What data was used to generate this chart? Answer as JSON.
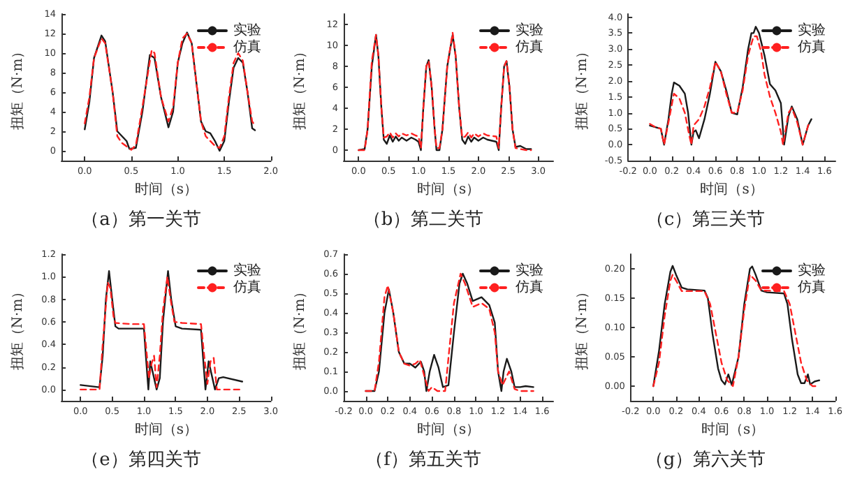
{
  "chart_data": [
    {
      "type": "line",
      "title": "（a）第一关节",
      "xlabel": "时间（s）",
      "ylabel": "扭矩（N·m）",
      "legend": "top right",
      "grid": false,
      "marker": "none",
      "xlim": [
        -0.25,
        2.0
      ],
      "ylim": [
        -1,
        14
      ],
      "xticks": [
        {
          "value": 0,
          "label": "0.0"
        },
        {
          "value": 0.5,
          "label": "0.5"
        },
        {
          "value": 1,
          "label": "1.0"
        },
        {
          "value": 1.5,
          "label": "1.5"
        },
        {
          "value": 2,
          "label": "2.0"
        }
      ],
      "yticks": [
        0,
        2,
        4,
        6,
        8,
        10,
        12,
        14
      ],
      "series": [
        {
          "name": "实验",
          "color": "#1a1a1a",
          "line_style": "solid",
          "x": [
            0,
            0.05,
            0.1,
            0.18,
            0.22,
            0.3,
            0.35,
            0.4,
            0.45,
            0.48,
            0.55,
            0.62,
            0.7,
            0.75,
            0.82,
            0.9,
            0.95,
            1.0,
            1.05,
            1.1,
            1.15,
            1.2,
            1.25,
            1.3,
            1.35,
            1.4,
            1.45,
            1.5,
            1.55,
            1.6,
            1.65,
            1.7,
            1.75,
            1.8,
            1.83
          ],
          "values": [
            2.2,
            5,
            9.5,
            11.8,
            11.2,
            6,
            2,
            1.5,
            1,
            0.2,
            0.3,
            4,
            9.8,
            9.5,
            5.5,
            2.4,
            4,
            9,
            11,
            12.1,
            11,
            7,
            3,
            2,
            1.8,
            1,
            0,
            1,
            5,
            8.5,
            9.5,
            9,
            6,
            2.3,
            2.1
          ]
        },
        {
          "name": "仿真",
          "color": "#ff2020",
          "line_style": "dashed",
          "x": [
            0,
            0.05,
            0.1,
            0.18,
            0.22,
            0.3,
            0.35,
            0.4,
            0.5,
            0.55,
            0.62,
            0.72,
            0.75,
            0.82,
            0.9,
            0.95,
            1.0,
            1.05,
            1.1,
            1.15,
            1.2,
            1.25,
            1.3,
            1.4,
            1.45,
            1.5,
            1.55,
            1.6,
            1.65,
            1.7,
            1.75,
            1.8,
            1.83
          ],
          "values": [
            2.8,
            5.5,
            9.5,
            11.5,
            11,
            6,
            1.5,
            0.8,
            0.1,
            0.6,
            4.5,
            10.3,
            10,
            5.5,
            3,
            4.5,
            9,
            11.5,
            12,
            11,
            7,
            3,
            1.5,
            0.5,
            0.3,
            1.5,
            5.5,
            9,
            10,
            9.2,
            6,
            3,
            2.6
          ]
        }
      ]
    },
    {
      "type": "line",
      "title": "（b）第二关节",
      "xlabel": "时间（s）",
      "ylabel": "扭矩（N·m）",
      "legend": "top right",
      "grid": false,
      "marker": "none",
      "xlim": [
        -0.25,
        3.25
      ],
      "ylim": [
        -1,
        13
      ],
      "xticks": [
        {
          "value": 0,
          "label": "0.0"
        },
        {
          "value": 0.5,
          "label": "0.5"
        },
        {
          "value": 1,
          "label": "1.0"
        },
        {
          "value": 1.5,
          "label": "1.5"
        },
        {
          "value": 2,
          "label": "2.0"
        },
        {
          "value": 2.5,
          "label": "2.5"
        },
        {
          "value": 3,
          "label": "3.0"
        }
      ],
      "yticks": [
        0,
        2,
        4,
        6,
        8,
        10,
        12
      ],
      "series": [
        {
          "name": "实验",
          "color": "#1a1a1a",
          "line_style": "solid",
          "x": [
            0,
            0.1,
            0.15,
            0.22,
            0.29,
            0.33,
            0.38,
            0.42,
            0.47,
            0.52,
            0.57,
            0.62,
            0.67,
            0.72,
            0.8,
            0.88,
            0.95,
            1.0,
            1.04,
            1.08,
            1.13,
            1.17,
            1.22,
            1.27,
            1.3,
            1.35,
            1.4,
            1.48,
            1.57,
            1.62,
            1.68,
            1.73,
            1.78,
            1.83,
            1.88,
            1.93,
            2.0,
            2.08,
            2.15,
            2.3,
            2.34,
            2.38,
            2.43,
            2.47,
            2.52,
            2.57,
            2.62,
            2.7,
            2.8,
            2.88
          ],
          "values": [
            0,
            0.1,
            2,
            8,
            11,
            9,
            4,
            1,
            0.6,
            1.4,
            0.8,
            1.3,
            0.9,
            1.2,
            0.9,
            1.2,
            1.0,
            0.8,
            0,
            4,
            8,
            8.6,
            6,
            2,
            0,
            0,
            2,
            8,
            11,
            9,
            4,
            1,
            0.6,
            1.3,
            0.8,
            1.2,
            0.9,
            1.2,
            1.0,
            0.8,
            0,
            4,
            8,
            8.5,
            6,
            2,
            0.3,
            0.4,
            0.1,
            0.1
          ]
        },
        {
          "name": "仿真",
          "color": "#ff2020",
          "line_style": "dashed",
          "x": [
            0,
            0.1,
            0.15,
            0.22,
            0.29,
            0.33,
            0.38,
            0.42,
            0.47,
            0.52,
            0.57,
            0.62,
            0.67,
            0.72,
            0.8,
            0.88,
            0.95,
            1.0,
            1.04,
            1.08,
            1.13,
            1.17,
            1.22,
            1.27,
            1.3,
            1.35,
            1.4,
            1.48,
            1.57,
            1.62,
            1.68,
            1.73,
            1.78,
            1.83,
            1.88,
            1.93,
            2.0,
            2.08,
            2.15,
            2.3,
            2.34,
            2.38,
            2.43,
            2.47,
            2.52,
            2.57,
            2.62,
            2.7,
            2.8,
            2.88
          ],
          "values": [
            0,
            0,
            2,
            8.5,
            11,
            9,
            4,
            1.2,
            1.3,
            1.7,
            1.2,
            1.6,
            1.3,
            1.6,
            1.4,
            1.6,
            1.4,
            1.3,
            0.2,
            4,
            8,
            8.5,
            6,
            2,
            0.2,
            0.2,
            2,
            8,
            11.2,
            9,
            4,
            1.2,
            1.3,
            1.7,
            1.2,
            1.6,
            1.3,
            1.6,
            1.4,
            1.3,
            0.2,
            4,
            8,
            8.5,
            6,
            2,
            0.2,
            0.1,
            0,
            0
          ]
        }
      ]
    },
    {
      "type": "line",
      "title": "（c）第三关节",
      "xlabel": "时间（s）",
      "ylabel": "扭矩（N·m）",
      "legend": "top right",
      "grid": false,
      "marker": "none",
      "xlim": [
        -0.2,
        1.7
      ],
      "ylim": [
        -0.5,
        4.1
      ],
      "xticks": [
        {
          "value": -0.2,
          "label": "-0.2"
        },
        {
          "value": 0,
          "label": "0.0"
        },
        {
          "value": 0.2,
          "label": "0.2"
        },
        {
          "value": 0.4,
          "label": "0.4"
        },
        {
          "value": 0.6,
          "label": "0.6"
        },
        {
          "value": 0.8,
          "label": "0.8"
        },
        {
          "value": 1,
          "label": "1.0"
        },
        {
          "value": 1.2,
          "label": "1.2"
        },
        {
          "value": 1.4,
          "label": "1.4"
        },
        {
          "value": 1.6,
          "label": "1.6"
        }
      ],
      "yticks": [
        {
          "value": -0.5,
          "label": "-0.5"
        },
        {
          "value": 0,
          "label": "0.0"
        },
        {
          "value": 0.5,
          "label": "0.5"
        },
        {
          "value": 1,
          "label": "1.0"
        },
        {
          "value": 1.5,
          "label": "1.5"
        },
        {
          "value": 2,
          "label": "2.0"
        },
        {
          "value": 2.5,
          "label": "2.5"
        },
        {
          "value": 3,
          "label": "3.0"
        },
        {
          "value": 3.5,
          "label": "3.5"
        },
        {
          "value": 4,
          "label": "4.0"
        }
      ],
      "series": [
        {
          "name": "实验",
          "color": "#1a1a1a",
          "line_style": "solid",
          "x": [
            0,
            0.05,
            0.1,
            0.13,
            0.17,
            0.2,
            0.22,
            0.27,
            0.32,
            0.35,
            0.38,
            0.4,
            0.42,
            0.45,
            0.5,
            0.55,
            0.6,
            0.65,
            0.7,
            0.75,
            0.8,
            0.85,
            0.9,
            0.93,
            0.95,
            0.97,
            1.0,
            1.05,
            1.1,
            1.15,
            1.2,
            1.23,
            1.27,
            1.3,
            1.35,
            1.4,
            1.45,
            1.48
          ],
          "values": [
            0.6,
            0.55,
            0.5,
            0,
            0.8,
            1.6,
            1.95,
            1.85,
            1.6,
            1,
            0,
            0.4,
            0.45,
            0.2,
            0.8,
            1.6,
            2.6,
            2.3,
            1.7,
            1.0,
            0.95,
            1.8,
            3.0,
            3.5,
            3.5,
            3.7,
            3.5,
            2.8,
            1.9,
            1.7,
            1.3,
            0,
            0.9,
            1.2,
            0.8,
            0,
            0.6,
            0.8
          ]
        },
        {
          "name": "仿真",
          "color": "#ff2020",
          "line_style": "dashed",
          "x": [
            0,
            0.05,
            0.1,
            0.13,
            0.17,
            0.22,
            0.27,
            0.32,
            0.36,
            0.38,
            0.4,
            0.45,
            0.5,
            0.55,
            0.6,
            0.65,
            0.7,
            0.75,
            0.8,
            0.85,
            0.9,
            0.95,
            0.98,
            1.02,
            1.05,
            1.1,
            1.15,
            1.2,
            1.22,
            1.27,
            1.3,
            1.35,
            1.4,
            1.45,
            1.47
          ],
          "values": [
            0.65,
            0.55,
            0.5,
            0,
            0.7,
            1.6,
            1.45,
            1.0,
            0.3,
            0,
            0.6,
            0.8,
            1.2,
            1.8,
            2.6,
            2.3,
            1.6,
            1.0,
            1.0,
            1.7,
            2.8,
            3.4,
            3.4,
            2.9,
            2.2,
            1.5,
            1.0,
            0.4,
            0,
            1.0,
            1.15,
            0.7,
            0,
            0.6,
            0.7
          ]
        }
      ]
    },
    {
      "type": "line",
      "title": "（e）第四关节",
      "xlabel": "时间（s）",
      "ylabel": "扭矩（N·m）",
      "legend": "top right",
      "grid": false,
      "marker": "none",
      "xlim": [
        -0.3,
        3.0
      ],
      "ylim": [
        -0.1,
        1.2
      ],
      "xticks": [
        {
          "value": 0,
          "label": "0.0"
        },
        {
          "value": 0.5,
          "label": "0.5"
        },
        {
          "value": 1,
          "label": "1.0"
        },
        {
          "value": 1.5,
          "label": "1.5"
        },
        {
          "value": 2,
          "label": "2.0"
        },
        {
          "value": 2.5,
          "label": "2.5"
        },
        {
          "value": 3,
          "label": "3.0"
        }
      ],
      "yticks": [
        {
          "value": 0,
          "label": "0.0"
        },
        {
          "value": 0.2,
          "label": "0.2"
        },
        {
          "value": 0.4,
          "label": "0.4"
        },
        {
          "value": 0.6,
          "label": "0.6"
        },
        {
          "value": 0.8,
          "label": "0.8"
        },
        {
          "value": 1,
          "label": "1.0"
        },
        {
          "value": 1.2,
          "label": "1.2"
        }
      ],
      "series": [
        {
          "name": "实验",
          "color": "#1a1a1a",
          "line_style": "solid",
          "x": [
            0,
            0.3,
            0.35,
            0.4,
            0.45,
            0.5,
            0.55,
            0.6,
            0.8,
            1.0,
            1.03,
            1.07,
            1.1,
            1.14,
            1.2,
            1.25,
            1.3,
            1.38,
            1.43,
            1.5,
            1.6,
            1.9,
            1.93,
            1.97,
            2.02,
            2.06,
            2.12,
            2.18,
            2.25,
            2.55
          ],
          "values": [
            0.04,
            0.02,
            0.3,
            0.8,
            1.05,
            0.8,
            0.56,
            0.54,
            0.54,
            0.54,
            0.3,
            0,
            0.25,
            0.15,
            0,
            0.1,
            0.6,
            1.05,
            0.8,
            0.56,
            0.54,
            0.53,
            0.3,
            0,
            0.25,
            0.15,
            0,
            0.1,
            0.11,
            0.07
          ]
        },
        {
          "name": "仿真",
          "color": "#ff2020",
          "line_style": "dashed",
          "x": [
            0,
            0.3,
            0.35,
            0.43,
            0.47,
            0.52,
            0.55,
            0.8,
            1.0,
            1.03,
            1.08,
            1.12,
            1.16,
            1.2,
            1.25,
            1.3,
            1.37,
            1.42,
            1.48,
            1.6,
            1.9,
            1.95,
            2.0,
            2.05,
            2.1,
            2.15,
            2.2,
            2.55
          ],
          "values": [
            0,
            0,
            0.4,
            0.95,
            0.9,
            0.65,
            0.59,
            0.58,
            0.58,
            0.4,
            0.1,
            0.23,
            0.3,
            0.02,
            0.3,
            0.7,
            1.0,
            0.8,
            0.6,
            0.59,
            0.58,
            0.3,
            0.05,
            0.25,
            0.28,
            0,
            0,
            0
          ]
        }
      ]
    },
    {
      "type": "line",
      "title": "（f）第五关节",
      "xlabel": "时间（s）",
      "ylabel": "扭矩（N·m）",
      "legend": "top right",
      "grid": false,
      "marker": "none",
      "xlim": [
        -0.2,
        1.7
      ],
      "ylim": [
        -0.05,
        0.7
      ],
      "xticks": [
        {
          "value": -0.2,
          "label": "-0.2"
        },
        {
          "value": 0,
          "label": "0.0"
        },
        {
          "value": 0.2,
          "label": "0.2"
        },
        {
          "value": 0.4,
          "label": "0.4"
        },
        {
          "value": 0.6,
          "label": "0.6"
        },
        {
          "value": 0.8,
          "label": "0.8"
        },
        {
          "value": 1,
          "label": "1.0"
        },
        {
          "value": 1.2,
          "label": "1.2"
        },
        {
          "value": 1.4,
          "label": "1.4"
        },
        {
          "value": 1.6,
          "label": "1.6"
        }
      ],
      "yticks": [
        {
          "value": 0,
          "label": "0.0"
        },
        {
          "value": 0.1,
          "label": "0.1"
        },
        {
          "value": 0.2,
          "label": "0.2"
        },
        {
          "value": 0.3,
          "label": "0.3"
        },
        {
          "value": 0.4,
          "label": "0.4"
        },
        {
          "value": 0.5,
          "label": "0.5"
        },
        {
          "value": 0.6,
          "label": "0.6"
        },
        {
          "value": 0.7,
          "label": "0.7"
        }
      ],
      "series": [
        {
          "name": "实验",
          "color": "#1a1a1a",
          "line_style": "solid",
          "x": [
            0,
            0.08,
            0.12,
            0.17,
            0.21,
            0.25,
            0.3,
            0.35,
            0.4,
            0.45,
            0.5,
            0.53,
            0.55,
            0.58,
            0.62,
            0.66,
            0.7,
            0.75,
            0.8,
            0.85,
            0.88,
            0.92,
            0.97,
            1.05,
            1.12,
            1.17,
            1.2,
            1.23,
            1.25,
            1.28,
            1.32,
            1.35,
            1.4,
            1.45,
            1.52
          ],
          "values": [
            0,
            0,
            0.1,
            0.4,
            0.52,
            0.4,
            0.2,
            0.14,
            0.14,
            0.12,
            0.15,
            0.1,
            0,
            0.1,
            0.185,
            0.12,
            0.02,
            0.03,
            0.3,
            0.55,
            0.6,
            0.55,
            0.46,
            0.48,
            0.44,
            0.35,
            0.1,
            0,
            0.1,
            0.165,
            0.1,
            0.02,
            0.02,
            0.025,
            0.02
          ]
        },
        {
          "name": "仿真",
          "color": "#ff2020",
          "line_style": "dashed",
          "x": [
            0,
            0.08,
            0.12,
            0.17,
            0.2,
            0.25,
            0.3,
            0.35,
            0.4,
            0.45,
            0.49,
            0.53,
            0.57,
            0.6,
            0.65,
            0.72,
            0.8,
            0.86,
            0.9,
            0.97,
            1.05,
            1.12,
            1.17,
            1.2,
            1.24,
            1.3,
            1.35,
            1.4,
            1.52
          ],
          "values": [
            0,
            0,
            0.15,
            0.48,
            0.54,
            0.4,
            0.2,
            0.14,
            0.13,
            0.14,
            0.16,
            0.08,
            0,
            0.02,
            0,
            0,
            0.45,
            0.6,
            0.55,
            0.43,
            0.45,
            0.42,
            0.3,
            0.1,
            0.03,
            0.1,
            0.01,
            0,
            0
          ]
        }
      ]
    },
    {
      "type": "line",
      "title": "（g）第六关节",
      "xlabel": "时间（s）",
      "ylabel": "扭矩（N·m）",
      "legend": "top right",
      "grid": false,
      "marker": "none",
      "xlim": [
        -0.2,
        1.6
      ],
      "ylim": [
        -0.025,
        0.225
      ],
      "xticks": [
        {
          "value": -0.2,
          "label": "-0.2"
        },
        {
          "value": 0,
          "label": "0.0"
        },
        {
          "value": 0.2,
          "label": "0.2"
        },
        {
          "value": 0.4,
          "label": "0.4"
        },
        {
          "value": 0.6,
          "label": "0.6"
        },
        {
          "value": 0.8,
          "label": "0.8"
        },
        {
          "value": 1,
          "label": "1.0"
        },
        {
          "value": 1.2,
          "label": "1.2"
        },
        {
          "value": 1.4,
          "label": "1.4"
        },
        {
          "value": 1.6,
          "label": "1.6"
        }
      ],
      "yticks": [
        {
          "value": 0,
          "label": "0.00"
        },
        {
          "value": 0.05,
          "label": "0.05"
        },
        {
          "value": 0.1,
          "label": "0.10"
        },
        {
          "value": 0.15,
          "label": "0.15"
        },
        {
          "value": 0.2,
          "label": "0.20"
        }
      ],
      "series": [
        {
          "name": "实验",
          "color": "#1a1a1a",
          "line_style": "solid",
          "x": [
            0,
            0.05,
            0.1,
            0.15,
            0.17,
            0.2,
            0.25,
            0.3,
            0.45,
            0.48,
            0.52,
            0.57,
            0.6,
            0.63,
            0.66,
            0.69,
            0.75,
            0.8,
            0.85,
            0.87,
            0.9,
            0.95,
            1.0,
            1.15,
            1.18,
            1.22,
            1.27,
            1.3,
            1.33,
            1.36,
            1.38,
            1.42,
            1.46
          ],
          "values": [
            0,
            0.06,
            0.14,
            0.195,
            0.205,
            0.19,
            0.168,
            0.165,
            0.163,
            0.15,
            0.09,
            0.03,
            0.01,
            0.003,
            0.02,
            0.002,
            0.05,
            0.14,
            0.2,
            0.204,
            0.19,
            0.163,
            0.16,
            0.158,
            0.14,
            0.08,
            0.02,
            0.005,
            0.005,
            0.02,
            0.003,
            0.008,
            0.01
          ]
        },
        {
          "name": "仿真",
          "color": "#ff2020",
          "line_style": "dashed",
          "x": [
            0,
            0.05,
            0.1,
            0.15,
            0.17,
            0.2,
            0.25,
            0.45,
            0.5,
            0.55,
            0.6,
            0.65,
            0.7,
            0.75,
            0.8,
            0.85,
            0.9,
            0.95,
            1.15,
            1.2,
            1.25,
            1.3,
            1.35,
            1.4,
            1.46
          ],
          "values": [
            0,
            0.04,
            0.12,
            0.18,
            0.19,
            0.18,
            0.162,
            0.162,
            0.14,
            0.09,
            0.04,
            0.01,
            0,
            0.05,
            0.13,
            0.19,
            0.18,
            0.163,
            0.162,
            0.14,
            0.09,
            0.04,
            0.01,
            0,
            0
          ]
        }
      ]
    }
  ]
}
